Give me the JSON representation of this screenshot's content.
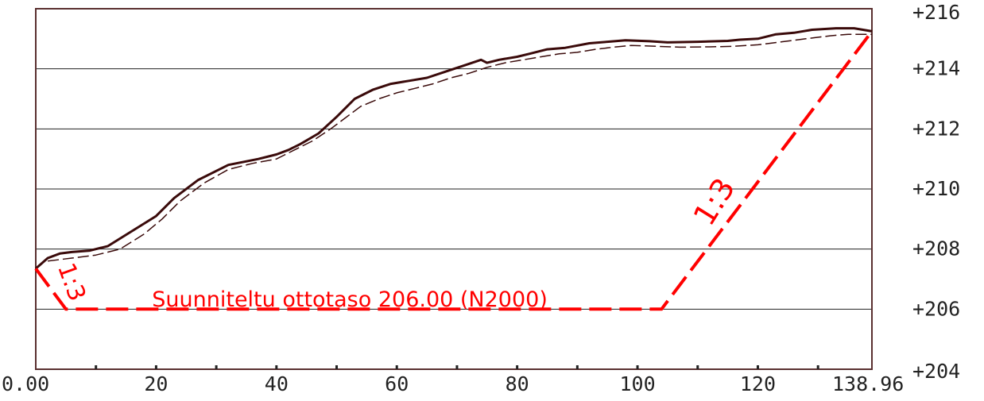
{
  "chart_data": {
    "type": "line",
    "xlim": [
      0,
      138.96
    ],
    "ylim": [
      204,
      216
    ],
    "x_ticks": [
      0,
      20,
      40,
      60,
      80,
      100,
      120,
      138.96
    ],
    "x_tick_labels": [
      "0.00",
      "20",
      "40",
      "60",
      "80",
      "100",
      "120",
      "138.96"
    ],
    "y_ticks": [
      204,
      206,
      208,
      210,
      212,
      214,
      216
    ],
    "y_tick_labels": [
      "+204",
      "+206",
      "+208",
      "+210",
      "+212",
      "+214",
      "+216"
    ],
    "grid": true,
    "series": [
      {
        "style": "solid",
        "color": "#3a0a0a",
        "x": [
          0,
          2,
          4,
          6,
          9,
          12,
          16,
          20,
          23,
          27,
          32,
          37,
          40,
          42,
          44,
          47,
          50,
          53,
          56,
          59,
          62,
          65,
          68,
          71,
          74,
          75,
          77,
          80,
          82,
          85,
          88,
          92,
          95,
          98,
          102,
          105,
          110,
          115,
          117,
          120,
          123,
          126,
          129,
          133,
          136,
          138.96
        ],
        "y": [
          207.35,
          207.7,
          207.85,
          207.9,
          207.95,
          208.1,
          208.6,
          209.1,
          209.7,
          210.3,
          210.8,
          211.0,
          211.15,
          211.3,
          211.5,
          211.85,
          212.4,
          213.0,
          213.3,
          213.5,
          213.6,
          213.7,
          213.9,
          214.1,
          214.3,
          214.2,
          214.3,
          214.4,
          214.5,
          214.65,
          214.7,
          214.85,
          214.9,
          214.95,
          214.92,
          214.88,
          214.9,
          214.93,
          214.97,
          215.0,
          215.15,
          215.2,
          215.3,
          215.35,
          215.35,
          215.25
        ]
      },
      {
        "style": "dashed",
        "color": "#3a0a0a",
        "x": [
          2,
          6,
          10,
          14,
          18,
          21,
          24,
          28,
          32,
          36,
          40,
          43,
          46,
          49,
          51,
          54,
          57,
          60,
          63,
          66,
          69,
          72,
          75,
          78,
          81,
          84,
          87,
          90,
          93,
          96,
          99,
          103,
          107,
          112,
          116,
          120,
          124,
          128,
          132,
          135,
          138.96
        ],
        "y": [
          207.6,
          207.7,
          207.8,
          208.0,
          208.5,
          209.0,
          209.6,
          210.2,
          210.65,
          210.85,
          211.0,
          211.3,
          211.6,
          212.0,
          212.3,
          212.75,
          213.0,
          213.2,
          213.35,
          213.5,
          213.7,
          213.85,
          214.05,
          214.2,
          214.3,
          214.4,
          214.5,
          214.55,
          214.65,
          214.72,
          214.78,
          214.75,
          214.72,
          214.73,
          214.75,
          214.8,
          214.9,
          215.0,
          215.1,
          215.15,
          215.15
        ]
      },
      {
        "style": "long-dash",
        "color": "#ff0000",
        "x": [
          0,
          5,
          104,
          138.96
        ],
        "y": [
          207.35,
          206.0,
          206.0,
          215.25
        ]
      }
    ],
    "annotations": [
      {
        "text": "Suunniteltu ottotaso 206.00 (N2000)",
        "x": 18,
        "y": 206.25
      },
      {
        "text": "1:3",
        "x": 3,
        "y": 207.0
      },
      {
        "text": "1:3",
        "x": 115,
        "y": 209.5
      }
    ]
  }
}
